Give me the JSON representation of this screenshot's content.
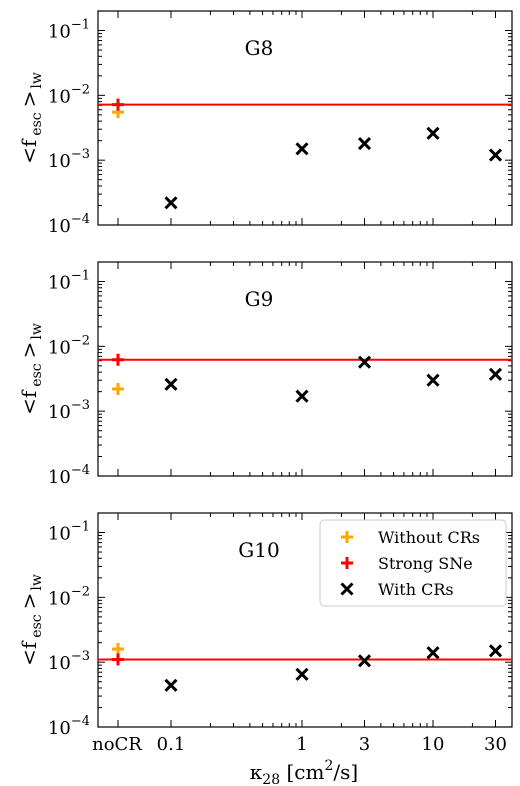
{
  "figure": {
    "ylabel_main": "<f",
    "ylabel_sub": "esc",
    "ylabel_tail": ">",
    "ylabel_tail_sub": "lw",
    "xlabel_kappa": "κ",
    "xlabel_sub": "28",
    "xlabel_units_open": "[cm",
    "xlabel_units_exp": "2",
    "xlabel_units_close": "/s]",
    "colors": {
      "without": "#ffa500",
      "strong": "#ff0000",
      "with": "#000000",
      "line": "#ff0000"
    }
  },
  "legend": {
    "placement": "upper-right of bottom panel",
    "entries": [
      {
        "label": "Without CRs",
        "marker": "+",
        "color": "#ffa500"
      },
      {
        "label": "Strong SNe",
        "marker": "+",
        "color": "#ff0000"
      },
      {
        "label": "With CRs",
        "marker": "x",
        "color": "#000000"
      }
    ]
  },
  "chart_data": [
    {
      "type": "scatter",
      "panel_label": "G8",
      "yscale": "log",
      "ylim": [
        0.0001,
        0.2
      ],
      "x_tick_labels": [
        "noCR",
        "0.1",
        "1",
        "3",
        "10",
        "30"
      ],
      "x_show_labels": false,
      "y_tick_values": [
        0.0001,
        0.001,
        0.01,
        0.1
      ],
      "without_crs": {
        "x": "noCR",
        "y": 0.0055
      },
      "strong_sne": {
        "x": "noCR",
        "y": 0.0072,
        "hline": 0.0072
      },
      "with_crs": {
        "x": [
          0.1,
          1,
          3,
          10,
          30
        ],
        "y": [
          0.00022,
          0.0015,
          0.0018,
          0.0026,
          0.0012
        ]
      }
    },
    {
      "type": "scatter",
      "panel_label": "G9",
      "yscale": "log",
      "ylim": [
        0.0001,
        0.2
      ],
      "x_tick_labels": [
        "noCR",
        "0.1",
        "1",
        "3",
        "10",
        "30"
      ],
      "x_show_labels": false,
      "y_tick_values": [
        0.0001,
        0.001,
        0.01,
        0.1
      ],
      "without_crs": {
        "x": "noCR",
        "y": 0.0022
      },
      "strong_sne": {
        "x": "noCR",
        "y": 0.0062,
        "hline": 0.0062
      },
      "with_crs": {
        "x": [
          0.1,
          1,
          3,
          10,
          30
        ],
        "y": [
          0.0026,
          0.0017,
          0.0057,
          0.003,
          0.0037
        ]
      }
    },
    {
      "type": "scatter",
      "panel_label": "G10",
      "yscale": "log",
      "ylim": [
        0.0001,
        0.2
      ],
      "x_tick_labels": [
        "noCR",
        "0.1",
        "1",
        "3",
        "10",
        "30"
      ],
      "x_show_labels": true,
      "y_tick_values": [
        0.0001,
        0.001,
        0.01,
        0.1
      ],
      "without_crs": {
        "x": "noCR",
        "y": 0.0016
      },
      "strong_sne": {
        "x": "noCR",
        "y": 0.0011,
        "hline": 0.0011
      },
      "with_crs": {
        "x": [
          0.1,
          1,
          3,
          10,
          30
        ],
        "y": [
          0.00044,
          0.00065,
          0.00105,
          0.0014,
          0.0015
        ]
      }
    }
  ]
}
